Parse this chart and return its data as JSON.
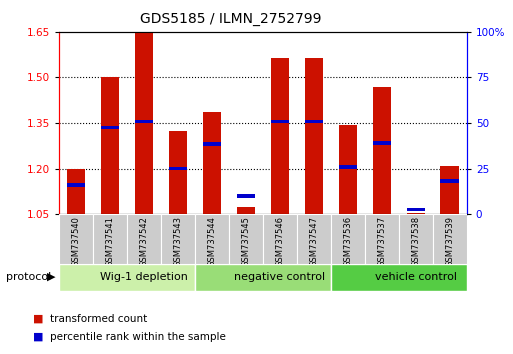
{
  "title": "GDS5185 / ILMN_2752799",
  "samples": [
    "GSM737540",
    "GSM737541",
    "GSM737542",
    "GSM737543",
    "GSM737544",
    "GSM737545",
    "GSM737546",
    "GSM737547",
    "GSM737536",
    "GSM737537",
    "GSM737538",
    "GSM737539"
  ],
  "red_values": [
    1.2,
    1.5,
    1.645,
    1.325,
    1.385,
    1.075,
    1.565,
    1.565,
    1.345,
    1.47,
    1.055,
    1.21
  ],
  "blue_values": [
    1.145,
    1.335,
    1.355,
    1.2,
    1.28,
    1.11,
    1.355,
    1.355,
    1.205,
    1.285,
    1.065,
    1.16
  ],
  "groups": [
    {
      "label": "Wig-1 depletion",
      "start": 0,
      "end": 4,
      "color": "#ccf0aa"
    },
    {
      "label": "negative control",
      "start": 4,
      "end": 8,
      "color": "#99dd77"
    },
    {
      "label": "vehicle control",
      "start": 8,
      "end": 12,
      "color": "#55cc44"
    }
  ],
  "ymin": 1.05,
  "ymax": 1.65,
  "y2min": 0,
  "y2max": 100,
  "yticks": [
    1.05,
    1.2,
    1.35,
    1.5,
    1.65
  ],
  "y2ticks": [
    0,
    25,
    50,
    75,
    100
  ],
  "bar_color": "#cc1100",
  "blue_color": "#0000cc",
  "bar_width": 0.55,
  "protocol_label": "protocol",
  "legend_red": "transformed count",
  "legend_blue": "percentile rank within the sample"
}
